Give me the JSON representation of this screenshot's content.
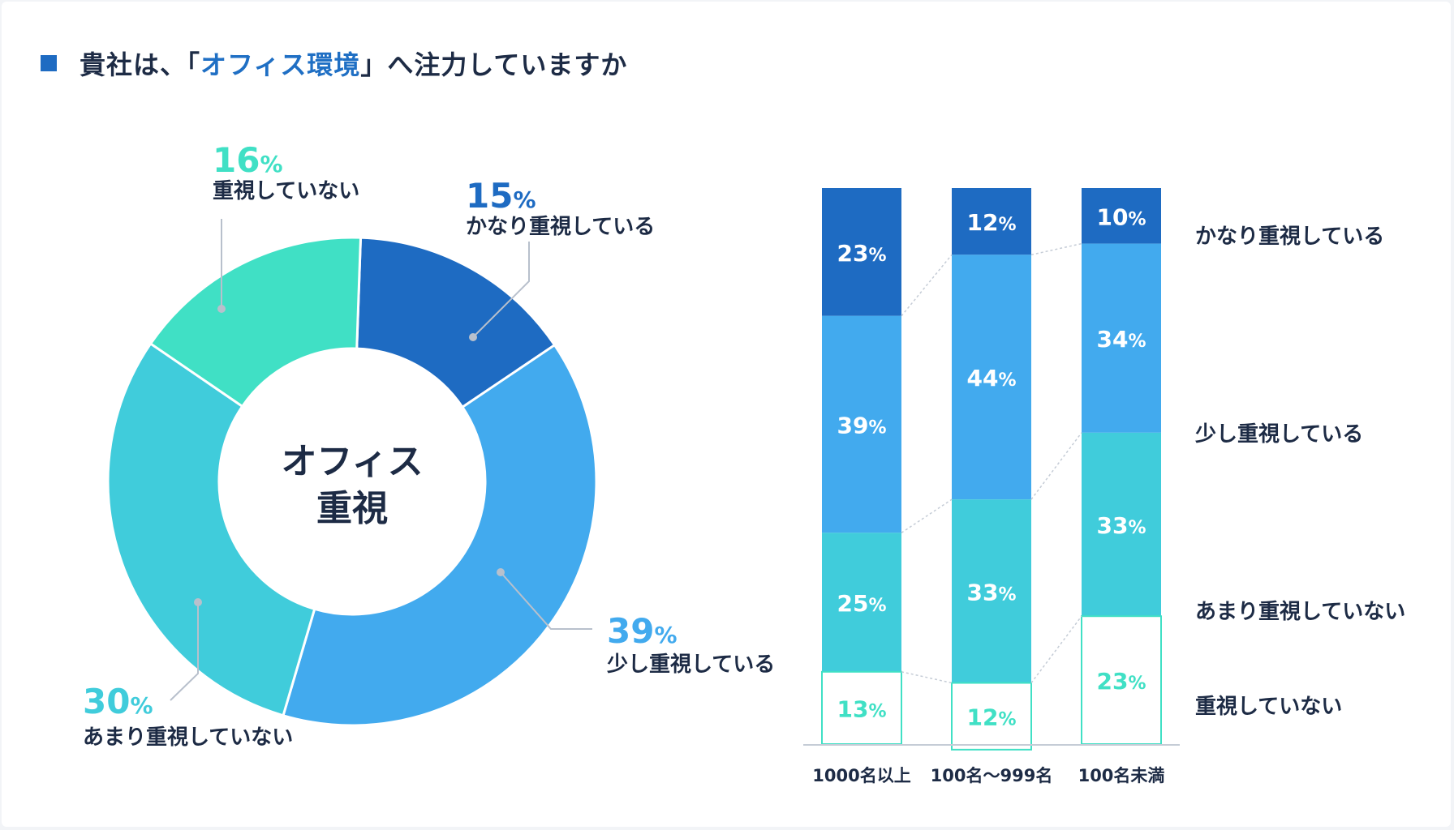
{
  "title": {
    "prefix": "貴社は、「",
    "highlight": "オフィス環境",
    "suffix": "」へ注力していますか"
  },
  "colors": {
    "very": "#1e6bc2",
    "somewhat": "#42aaee",
    "notmuch": "#40ccdb",
    "not": "#40e0c5",
    "text": "#1d2b45",
    "title_square": "#1e6bc2",
    "highlight": "#1f6fc4",
    "leader": "#b8c0cc"
  },
  "chart_data": [
    {
      "type": "pie",
      "variant": "donut",
      "center_label": [
        "オフィス",
        "重視"
      ],
      "slices": [
        {
          "label": "かなり重視している",
          "value": 15,
          "display": "15",
          "unit": "%"
        },
        {
          "label": "少し重視している",
          "value": 39,
          "display": "39",
          "unit": "%"
        },
        {
          "label": "あまり重視していない",
          "value": 30,
          "display": "30",
          "unit": "%"
        },
        {
          "label": "重視していない",
          "value": 16,
          "display": "16",
          "unit": "%"
        }
      ]
    },
    {
      "type": "bar",
      "stacked": "100%",
      "categories": [
        "1000名以上",
        "100名〜999名",
        "100名未満"
      ],
      "series": [
        {
          "name": "かなり重視している",
          "values": [
            23,
            12,
            10
          ]
        },
        {
          "name": "少し重視している",
          "values": [
            39,
            44,
            34
          ]
        },
        {
          "name": "あまり重視していない",
          "values": [
            25,
            33,
            33
          ]
        },
        {
          "name": "重視していない",
          "values": [
            13,
            12,
            23
          ]
        }
      ],
      "unit": "%",
      "legend": [
        "かなり重視している",
        "少し重視している",
        "あまり重視していない",
        "重視していない"
      ],
      "legend_position": "right"
    }
  ]
}
